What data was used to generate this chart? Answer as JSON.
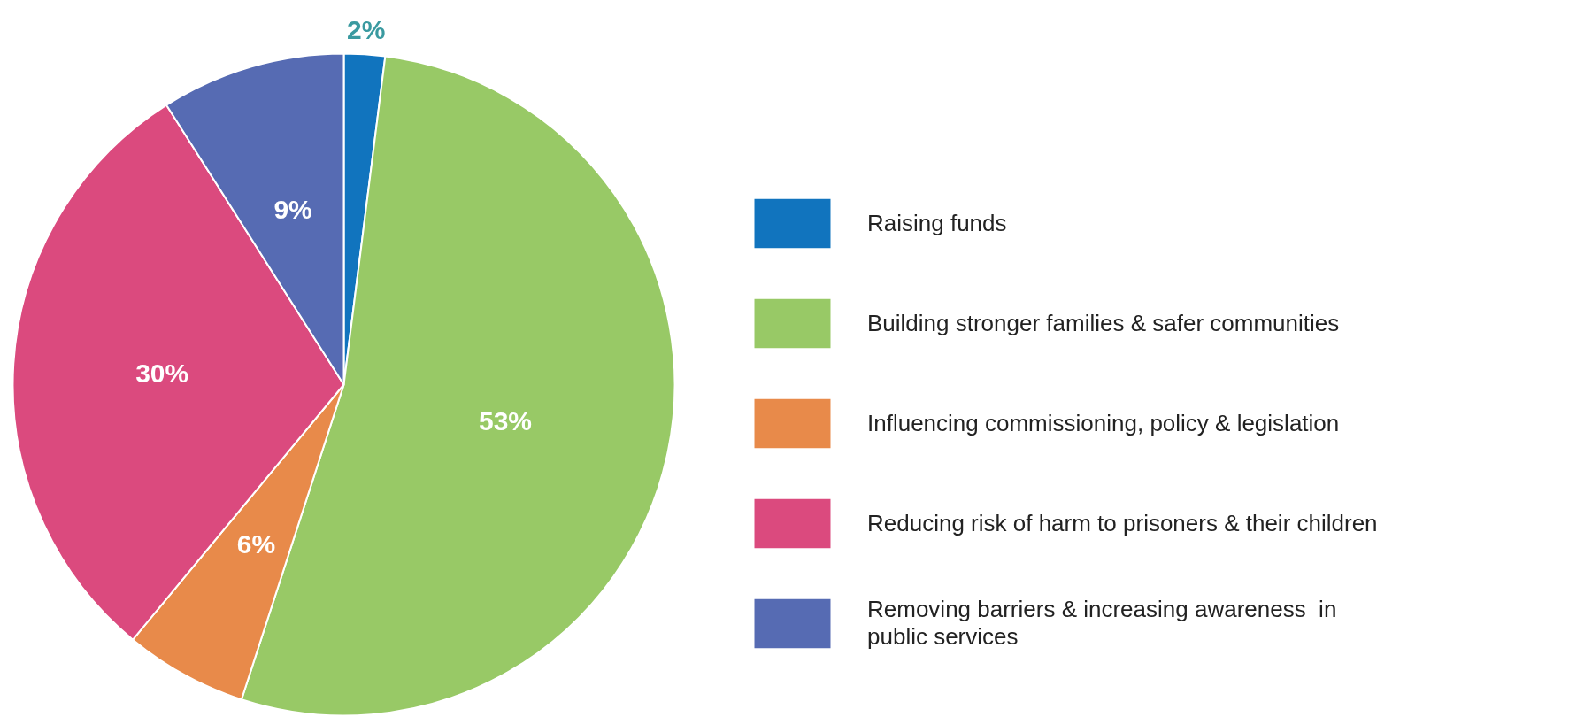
{
  "chart_data": {
    "type": "pie",
    "categories": [
      "Raising funds",
      "Building stronger families & safer communities",
      "Influencing commissioning, policy & legislation",
      "Reducing risk of harm to prisoners & their children",
      "Removing barriers & increasing awareness  in public services"
    ],
    "values": [
      2,
      53,
      6,
      30,
      9
    ],
    "colors": [
      "#1174be",
      "#98c966",
      "#e88a4a",
      "#db4a7e",
      "#566bb3"
    ],
    "value_labels": [
      "2%",
      "53%",
      "6%",
      "30%",
      "9%"
    ],
    "legend": "right"
  }
}
